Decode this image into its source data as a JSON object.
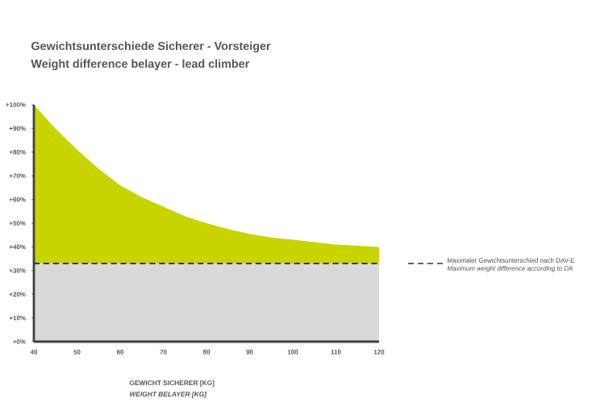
{
  "chart_data": {
    "type": "area",
    "title": "Gewichtsunterschiede Sicherer - Vorsteiger",
    "subtitle": "Weight difference belayer - lead climber",
    "xlabel": "GEWICHT SICHERER [KG]",
    "annotations": [
      "WEIGHT BELAYER [KG]",
      "Maximum weight  difference according to DA"
    ],
    "x": [
      40,
      45,
      50,
      55,
      60,
      65,
      70,
      75,
      80,
      85,
      90,
      95,
      100,
      110,
      120
    ],
    "series": [
      {
        "color": "#c8d400",
        "values": [
          100,
          90,
          81,
          73,
          66,
          61,
          57,
          53,
          50,
          47.5,
          45.5,
          44,
          43,
          41,
          40
        ]
      }
    ],
    "xlim": [
      40,
      120
    ],
    "xticks": [
      40,
      50,
      60,
      70,
      80,
      90,
      100,
      110,
      120
    ],
    "ylim": [
      0,
      100
    ],
    "yticks": [
      {
        "value": 0,
        "label": "+0%"
      },
      {
        "value": 10,
        "label": "+10%"
      },
      {
        "value": 20,
        "label": "+20%"
      },
      {
        "value": 30,
        "label": "+30%"
      },
      {
        "value": 40,
        "label": "+40%"
      },
      {
        "value": 50,
        "label": "+50%"
      },
      {
        "value": 60,
        "label": "+60%"
      },
      {
        "value": 70,
        "label": "+70%"
      },
      {
        "value": 80,
        "label": "+80%"
      },
      {
        "value": 90,
        "label": "+90%"
      },
      {
        "value": 100,
        "label": "+100%"
      }
    ],
    "bands": [
      {
        "axis": "y",
        "from": 0,
        "to": 33,
        "color": "#d9d9d9"
      }
    ],
    "ref_lines": [
      {
        "axis": "y",
        "value": 33,
        "label": "Maximaler Gewichtsunterschied nach DAV-E",
        "color": "#333333",
        "line_style": "dashed"
      }
    ]
  }
}
